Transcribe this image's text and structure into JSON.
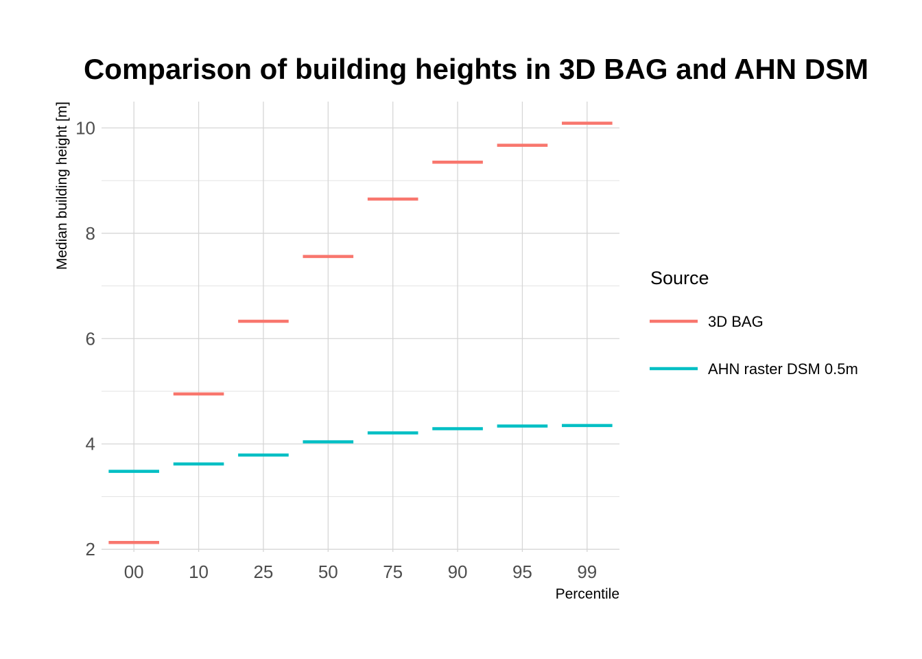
{
  "chart_data": {
    "type": "line",
    "mark": "horizontal-segment",
    "title": "Comparison of building heights in 3D BAG and AHN DSM",
    "xlabel": "Percentile",
    "ylabel": "Median building height [m]",
    "categories": [
      "00",
      "10",
      "25",
      "50",
      "75",
      "90",
      "95",
      "99"
    ],
    "ylim": [
      1.95,
      10.5
    ],
    "yticks": [
      2,
      4,
      6,
      8,
      10
    ],
    "yticks_minor": [
      3,
      5,
      7,
      9
    ],
    "grid": true,
    "legend": {
      "title": "Source",
      "placement": "right"
    },
    "series": [
      {
        "name": "3D BAG",
        "color": "#F8766D",
        "values": [
          2.13,
          4.95,
          6.33,
          7.56,
          8.65,
          9.35,
          9.67,
          10.09
        ]
      },
      {
        "name": "AHN raster DSM 0.5m",
        "color": "#00BFC4",
        "values": [
          3.48,
          3.62,
          3.79,
          4.04,
          4.21,
          4.29,
          4.34,
          4.35
        ]
      }
    ]
  }
}
